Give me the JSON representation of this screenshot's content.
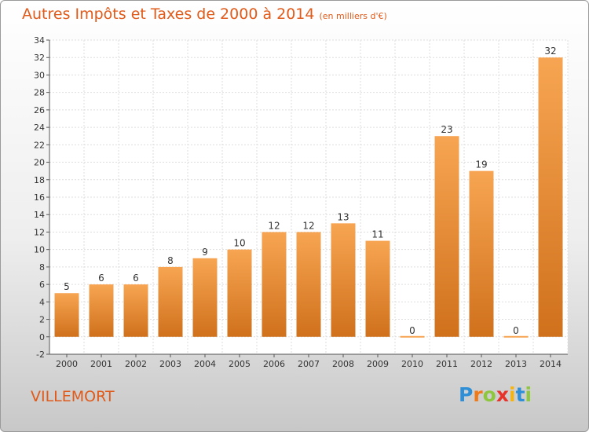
{
  "title": "Autres Impôts et Taxes de 2000 à 2014",
  "unit": "(en milliers d'€)",
  "location": "VILLEMORT",
  "brand": {
    "letters": [
      "P",
      "r",
      "o",
      "x",
      "i",
      "t",
      "i"
    ],
    "colors": [
      "#2e8fd6",
      "#f07a18",
      "#8fc63f",
      "#e8332a",
      "#f3b416",
      "#2e8fd6",
      "#8fc63f"
    ]
  },
  "colors": {
    "bar_top": "#f7a552",
    "bar_bottom": "#d0711c",
    "title": "#e05a1a"
  },
  "chart_data": {
    "type": "bar",
    "categories": [
      "2000",
      "2001",
      "2002",
      "2003",
      "2004",
      "2005",
      "2006",
      "2007",
      "2008",
      "2009",
      "2010",
      "2011",
      "2012",
      "2013",
      "2014"
    ],
    "values": [
      5,
      6,
      6,
      8,
      9,
      10,
      12,
      12,
      13,
      11,
      0,
      23,
      19,
      0,
      32
    ],
    "labels": [
      "5",
      "6",
      "6",
      "8",
      "9",
      "10",
      "12",
      "12",
      "13",
      "11",
      "0",
      "23",
      "19",
      "0",
      "32"
    ],
    "title": "Autres Impôts et Taxes de 2000 à 2014",
    "xlabel": "",
    "ylabel": "",
    "ylim": [
      -2,
      34
    ],
    "yticks": [
      -2,
      0,
      2,
      4,
      6,
      8,
      10,
      12,
      14,
      16,
      18,
      20,
      22,
      24,
      26,
      28,
      30,
      32,
      34
    ],
    "grid": true,
    "legend": "none"
  }
}
